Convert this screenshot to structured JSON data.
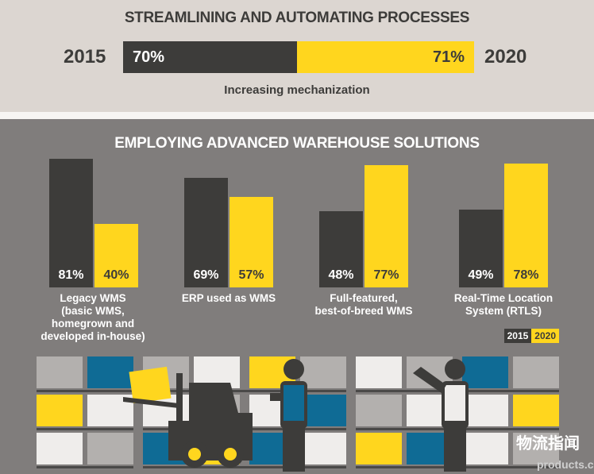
{
  "section1": {
    "title": "STREAMLINING AND AUTOMATING PROCESSES",
    "year_left": "2015",
    "year_right": "2020",
    "value_2015": "70%",
    "value_2020": "71%",
    "subtitle": "Increasing mechanization"
  },
  "section2": {
    "title": "EMPLOYING ADVANCED WAREHOUSE SOLUTIONS"
  },
  "chart_data": {
    "type": "bar",
    "title": "EMPLOYING ADVANCED WAREHOUSE SOLUTIONS",
    "categories": [
      "Legacy WMS (basic WMS, homegrown and developed in-house)",
      "ERP used as WMS",
      "Full-featured, best-of-breed WMS",
      "Real-Time Location System (RTLS)"
    ],
    "series": [
      {
        "name": "2015",
        "color": "#3d3c3a",
        "values": [
          81,
          69,
          48,
          49
        ]
      },
      {
        "name": "2020",
        "color": "#ffd61e",
        "values": [
          40,
          57,
          77,
          78
        ]
      }
    ],
    "data_labels": [
      [
        "81%",
        "40%"
      ],
      [
        "69%",
        "57%"
      ],
      [
        "48%",
        "77%"
      ],
      [
        "49%",
        "78%"
      ]
    ],
    "ylim": [
      0,
      100
    ],
    "legend": "bottom-right"
  },
  "category_labels": [
    "Legacy WMS\n(basic WMS,\nhomegrown and\ndeveloped in-house)",
    "ERP used as WMS",
    "Full-featured,\nbest-of-breed WMS",
    "Real-Time Location\nSystem (RTLS)"
  ],
  "legend": {
    "y2015": "2015",
    "y2020": "2020"
  },
  "colors": {
    "dark": "#3d3c3a",
    "yellow": "#ffd61e",
    "blue": "#0f6b95",
    "gray": "#b3b0ae",
    "white": "#efedeb"
  },
  "watermark": {
    "text": "物流指闻",
    "site": "products.com"
  }
}
